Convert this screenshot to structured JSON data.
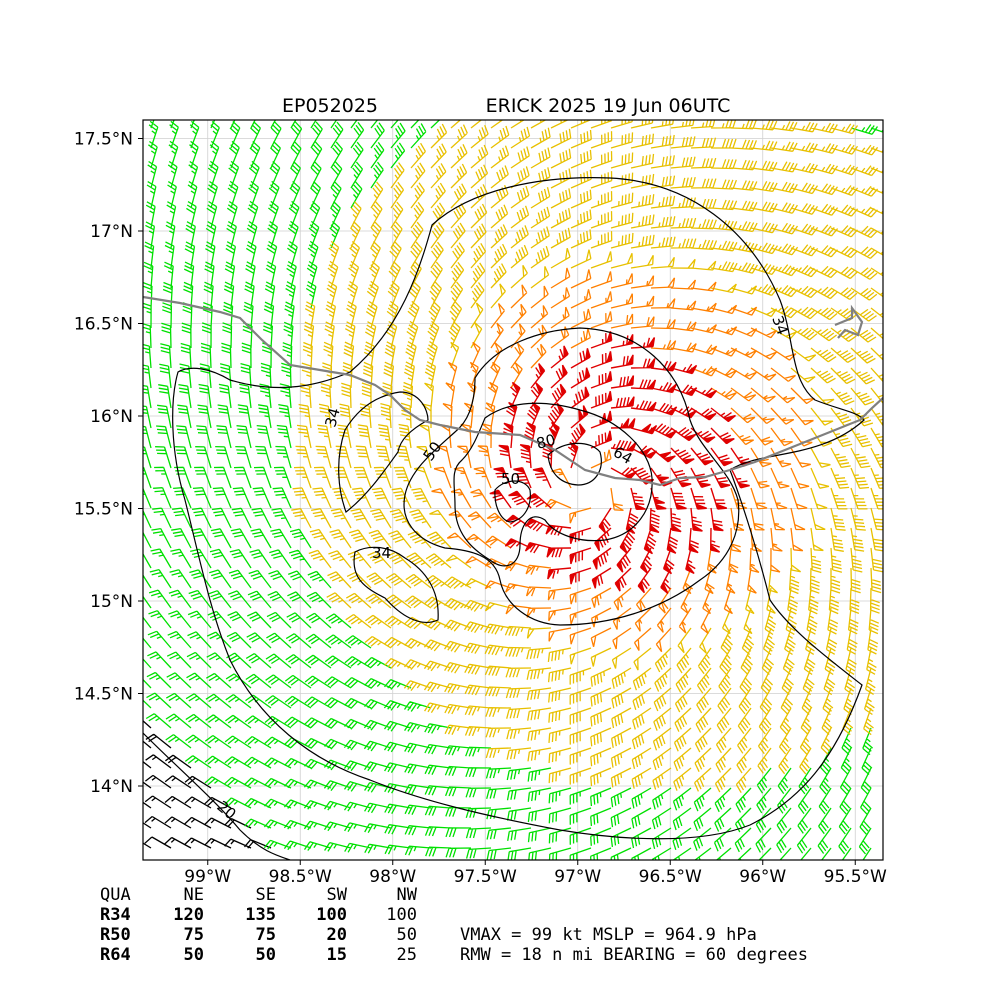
{
  "header": {
    "storm_id": "EP052025",
    "storm_title": "ERICK 2025 19 Jun 06UTC"
  },
  "map": {
    "lon_range": [
      -99.35,
      -95.35
    ],
    "lat_range": [
      13.6,
      17.6
    ],
    "lon_ticks": [
      {
        "value": -99.0,
        "label": "99°W"
      },
      {
        "value": -98.5,
        "label": "98.5°W"
      },
      {
        "value": -98.0,
        "label": "98°W"
      },
      {
        "value": -97.5,
        "label": "97.5°W"
      },
      {
        "value": -97.0,
        "label": "97°W"
      },
      {
        "value": -96.5,
        "label": "96.5°W"
      },
      {
        "value": -96.0,
        "label": "96°W"
      },
      {
        "value": -95.5,
        "label": "95.5°W"
      }
    ],
    "lat_ticks": [
      {
        "value": 17.5,
        "label": "17.5°N"
      },
      {
        "value": 17.0,
        "label": "17°N"
      },
      {
        "value": 16.5,
        "label": "16.5°N"
      },
      {
        "value": 16.0,
        "label": "16°N"
      },
      {
        "value": 15.5,
        "label": "15.5°N"
      },
      {
        "value": 15.0,
        "label": "15°N"
      },
      {
        "value": 14.5,
        "label": "14.5°N"
      },
      {
        "value": 14.0,
        "label": "14°N"
      }
    ],
    "grid": true,
    "storm_center": {
      "lon": -96.92,
      "lat": 15.63
    },
    "rmw_nmi": 18,
    "vmax_kt": 99,
    "wind_colors": {
      "below_20": "#000000",
      "kt_20_34": "#00e000",
      "kt_34_50": "#e8c000",
      "kt_50_64": "#ff8000",
      "kt_64_plus": "#e00000"
    },
    "coastline_color": "#808080",
    "contour_labels": [
      "20",
      "34",
      "34",
      "34",
      "50",
      "50",
      "64",
      "80"
    ]
  },
  "table": {
    "header": [
      "QUA",
      "NE",
      "SE",
      "SW",
      "NW"
    ],
    "rows": [
      {
        "qua": "R34",
        "ne": "120",
        "se": "135",
        "sw": "100",
        "nw": "100"
      },
      {
        "qua": "R50",
        "ne": "75",
        "se": "75",
        "sw": "20",
        "nw": "50"
      },
      {
        "qua": "R64",
        "ne": "50",
        "se": "50",
        "sw": "15",
        "nw": "25"
      }
    ]
  },
  "summary": {
    "line1": "VMAX =  99 kt MSLP = 964.9 hPa",
    "line2": "RMW =  18 n mi BEARING =  60 degrees"
  }
}
